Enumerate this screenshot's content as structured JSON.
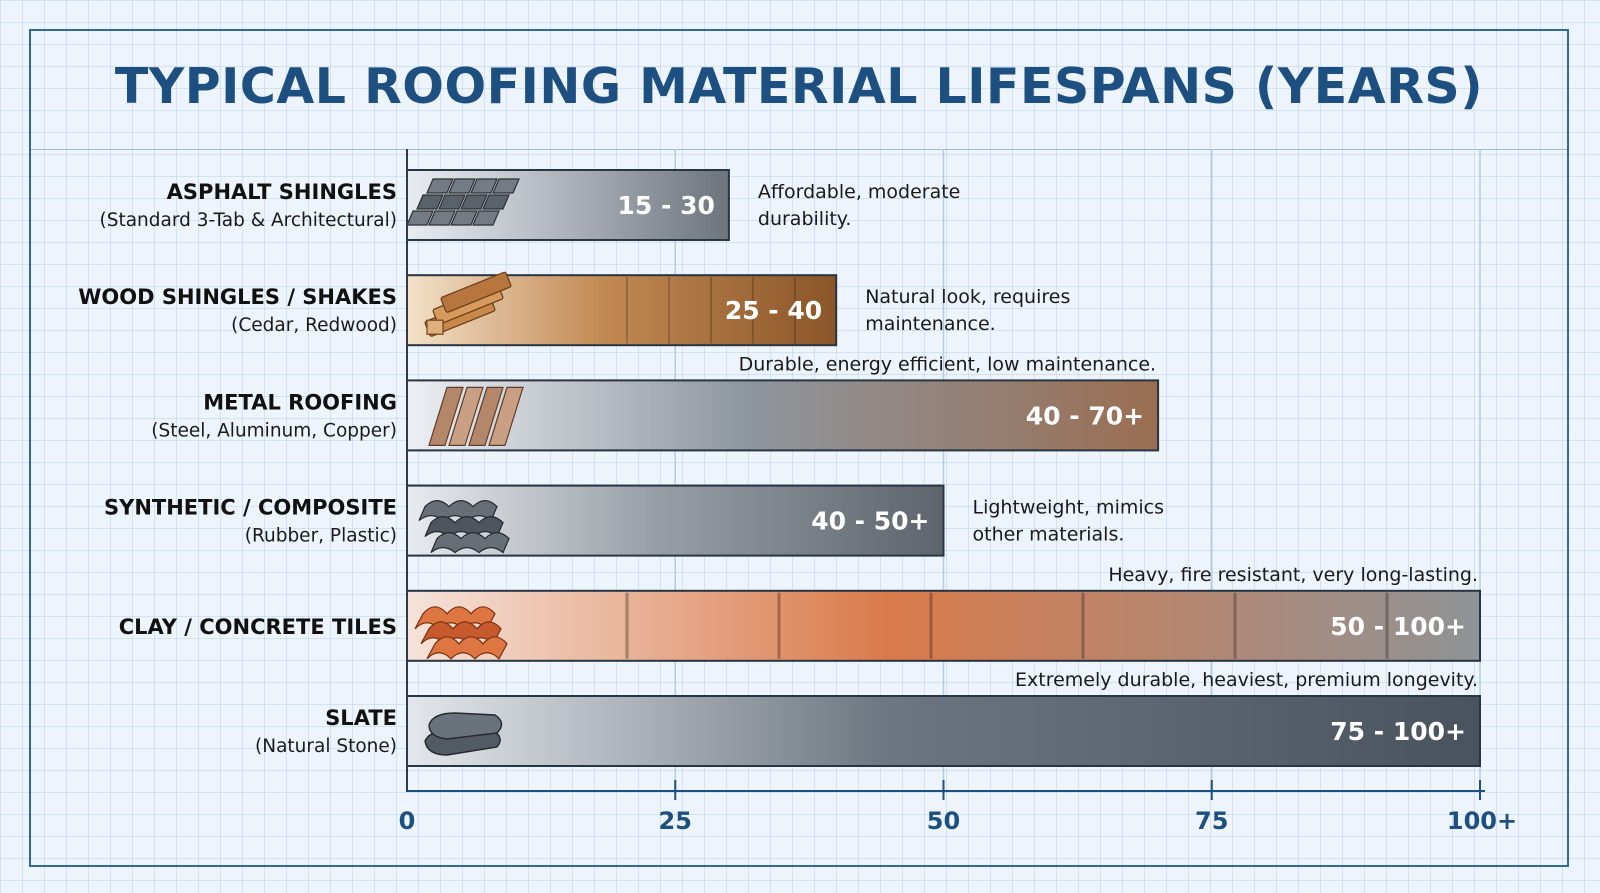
{
  "title": "TYPICAL ROOFING MATERIAL LIFESPANS (YEARS)",
  "chart_data": {
    "type": "bar",
    "orientation": "horizontal",
    "title": "TYPICAL ROOFING MATERIAL LIFESPANS (YEARS)",
    "xlabel": "",
    "ylabel": "",
    "xlim": [
      0,
      100
    ],
    "x_ticks": [
      0,
      25,
      50,
      75,
      100
    ],
    "x_tick_labels": [
      "0",
      "25",
      "50",
      "75",
      "100+"
    ],
    "grid": true,
    "legend": "none",
    "categories": [
      {
        "name": "ASPHALT SHINGLES",
        "subtitle": "(Standard 3-Tab & Architectural)",
        "range": [
          15,
          30
        ],
        "label": "15 - 30",
        "note": [
          "Affordable, moderate",
          "durability."
        ],
        "note_position": "right",
        "icon": "asphalt-shingles-icon",
        "colors": [
          "#e9edf2",
          "#b3b8bf",
          "#6e747c"
        ]
      },
      {
        "name": "WOOD SHINGLES / SHAKES",
        "subtitle": "(Cedar, Redwood)",
        "range": [
          25,
          40
        ],
        "label": "25 - 40",
        "note": [
          "Natural look, requires",
          "maintenance."
        ],
        "note_position": "right",
        "icon": "wood-planks-icon",
        "colors": [
          "#f3e1c9",
          "#c38a55",
          "#8a5528"
        ]
      },
      {
        "name": "METAL ROOFING",
        "subtitle": "(Steel, Aluminum, Copper)",
        "range": [
          40,
          70
        ],
        "label": "40 - 70+",
        "note": [
          "Durable, energy efficient, low maintenance."
        ],
        "note_position": "above",
        "icon": "metal-roof-panel-icon",
        "colors": [
          "#eceff3",
          "#8e969e",
          "#9a6e52"
        ]
      },
      {
        "name": "SYNTHETIC / COMPOSITE",
        "subtitle": "(Rubber, Plastic)",
        "range": [
          40,
          50
        ],
        "label": "40 - 50+",
        "note": [
          "Lightweight, mimics",
          "other materials."
        ],
        "note_position": "right",
        "icon": "synthetic-tiles-icon",
        "colors": [
          "#e8ebef",
          "#9aa0a7",
          "#5e646b"
        ]
      },
      {
        "name": "CLAY / CONCRETE TILES",
        "subtitle": "",
        "range": [
          50,
          100
        ],
        "label": "50 - 100+",
        "note": [
          "Heavy, fire resistant, very long-lasting."
        ],
        "note_position": "above",
        "icon": "clay-tiles-icon",
        "colors": [
          "#f6e3da",
          "#d97a4a",
          "#8f9397"
        ]
      },
      {
        "name": "SLATE",
        "subtitle": "(Natural Stone)",
        "range": [
          75,
          100
        ],
        "label": "75 - 100+",
        "note": [
          "Extremely durable, heaviest, premium longevity."
        ],
        "note_position": "above",
        "icon": "slate-stones-icon",
        "colors": [
          "#e3e7ec",
          "#6d7680",
          "#4a535d"
        ]
      }
    ]
  }
}
